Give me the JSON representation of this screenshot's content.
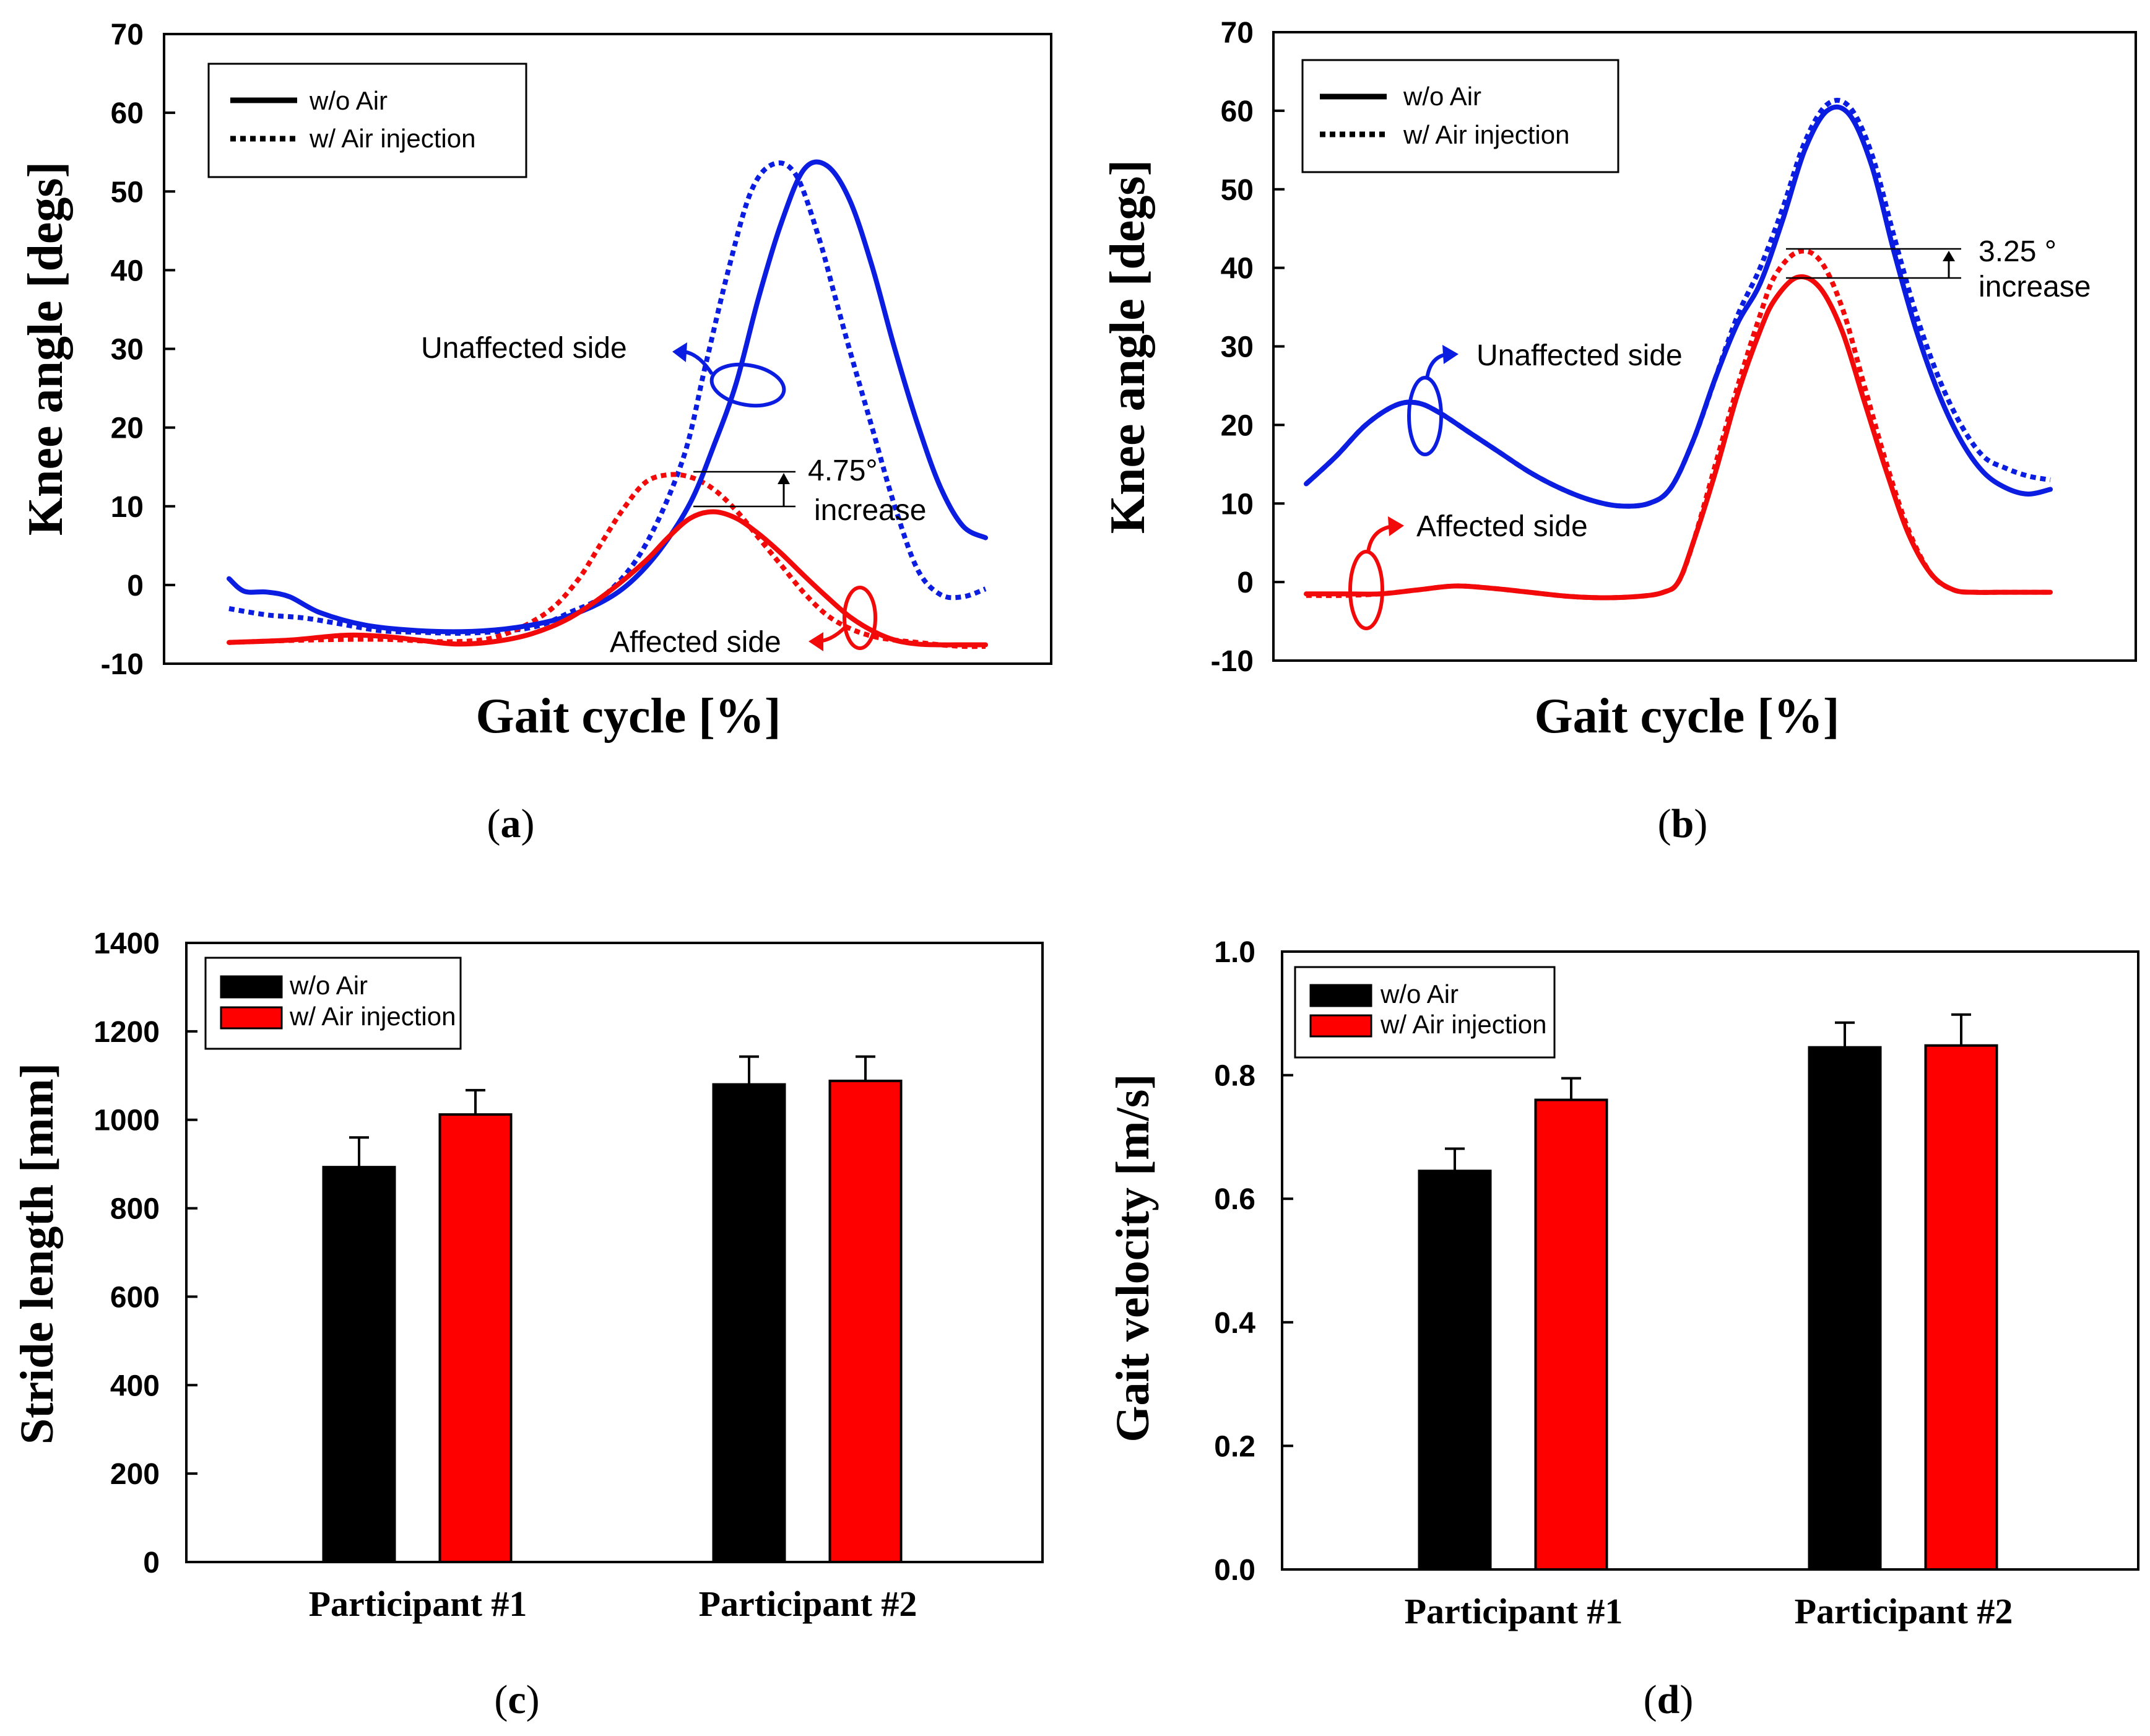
{
  "legend_line": {
    "solid": "w/o Air",
    "dotted": "w/ Air injection"
  },
  "legend_bar": {
    "black": "w/o Air",
    "red": "w/ Air injection"
  },
  "colors": {
    "blue": "#0b1de0",
    "red": "#f20a0a",
    "black": "#000000",
    "bar_red": "#ff0000"
  },
  "chart_data": [
    {
      "id": "a",
      "caption": "a",
      "type": "line",
      "xlabel": "Gait cycle [%]",
      "ylabel": "Knee angle [degs]",
      "ylim": [
        -10,
        70
      ],
      "yticks": [
        "70",
        "60",
        "50",
        "40",
        "30",
        "20",
        "10",
        "0",
        "-10"
      ],
      "xlim": [
        0,
        100
      ],
      "series": [
        {
          "name": "Unaffected side w/o Air",
          "side": "unaffected",
          "condition": "w/o Air",
          "style": "solid",
          "color": "blue",
          "x": [
            0,
            2,
            5,
            8,
            12,
            18,
            25,
            32,
            38,
            44,
            49,
            53,
            57,
            61,
            64,
            67,
            70,
            73,
            76,
            79,
            82,
            85,
            88,
            91,
            94,
            97,
            100
          ],
          "y": [
            0.8,
            -0.8,
            -0.9,
            -1.5,
            -3.5,
            -5.1,
            -5.8,
            -5.9,
            -5.4,
            -4.2,
            -2.3,
            0.3,
            4.5,
            10.5,
            17.5,
            25.5,
            36.5,
            46,
            52.8,
            53.3,
            49,
            40.5,
            30,
            20.5,
            12.5,
            7.5,
            6
          ]
        },
        {
          "name": "Unaffected side w/ Air injection",
          "side": "unaffected",
          "condition": "w/ Air injection",
          "style": "dotted",
          "color": "blue",
          "x": [
            0,
            5,
            10,
            15,
            20,
            25,
            32,
            40,
            45,
            50,
            55,
            60,
            63,
            66,
            69,
            72,
            75,
            78,
            80,
            82,
            85,
            88,
            91,
            94,
            97,
            100
          ],
          "y": [
            -3,
            -3.8,
            -4.2,
            -5,
            -5.8,
            -6,
            -6.1,
            -5.4,
            -3.5,
            -1,
            5,
            16,
            28,
            40,
            50,
            53.5,
            52,
            44,
            37,
            30,
            20,
            10,
            2,
            -1.2,
            -1.5,
            -0.5
          ]
        },
        {
          "name": "Affected side w/o Air",
          "side": "affected",
          "condition": "w/o Air",
          "style": "solid",
          "color": "red",
          "x": [
            0,
            8,
            15,
            20,
            25,
            30,
            35,
            40,
            45,
            50,
            55,
            58,
            61,
            64,
            67,
            70,
            73,
            76,
            79,
            82,
            85,
            88,
            91,
            94,
            97,
            100
          ],
          "y": [
            -7.3,
            -7,
            -6.4,
            -6.5,
            -7,
            -7.5,
            -7.2,
            -6.2,
            -4.2,
            -1,
            3,
            6,
            8.5,
            9.3,
            8.5,
            6.5,
            4,
            1.2,
            -1.5,
            -4,
            -5.8,
            -7,
            -7.5,
            -7.6,
            -7.6,
            -7.6
          ]
        },
        {
          "name": "Affected side w/ Air injection",
          "side": "affected",
          "condition": "w/ Air injection",
          "style": "dotted",
          "color": "red",
          "x": [
            0,
            10,
            20,
            30,
            36,
            42,
            46,
            49,
            52,
            55,
            58,
            61,
            64,
            67,
            70,
            73,
            76,
            79,
            82,
            85,
            88,
            91,
            94,
            97,
            100
          ],
          "y": [
            -7.3,
            -7,
            -6.9,
            -7.2,
            -6.4,
            -3.5,
            0.5,
            5,
            9.5,
            13,
            14,
            13.7,
            12.2,
            9.5,
            6,
            2.5,
            -1,
            -3.8,
            -5.5,
            -6.5,
            -7,
            -7.3,
            -7.6,
            -7.8,
            -7.8
          ]
        }
      ],
      "annotations": {
        "unaffected_label": "Unaffected side",
        "affected_label": "Affected side",
        "increase_value": "4.75°",
        "increase_word": "increase"
      }
    },
    {
      "id": "b",
      "caption": "b",
      "type": "line",
      "xlabel": "Gait cycle [%]",
      "ylabel": "Knee angle [degs]",
      "ylim": [
        -10,
        70
      ],
      "yticks": [
        "70",
        "60",
        "50",
        "40",
        "30",
        "20",
        "10",
        "0",
        "-10"
      ],
      "xlim": [
        0,
        100
      ],
      "series": [
        {
          "name": "Unaffected side w/o Air",
          "side": "unaffected",
          "condition": "w/o Air",
          "style": "solid",
          "color": "blue",
          "x": [
            0,
            4,
            8,
            12,
            15,
            18,
            22,
            26,
            30,
            34,
            38,
            42,
            46,
            49,
            52,
            55,
            58,
            61,
            64,
            67,
            70,
            73,
            76,
            79,
            82,
            85,
            88,
            91,
            94,
            97,
            100
          ],
          "y": [
            12.5,
            16,
            20,
            22.5,
            22.8,
            21.5,
            19,
            16.5,
            14,
            12,
            10.5,
            9.7,
            10,
            12,
            18,
            26,
            33,
            38,
            46,
            55,
            60,
            59.5,
            53,
            42,
            32,
            24,
            18,
            14,
            12,
            11.2,
            11.8
          ]
        },
        {
          "name": "Unaffected side w/ Air injection",
          "side": "unaffected",
          "condition": "w/ Air injection",
          "style": "dotted",
          "color": "blue",
          "x": [
            0,
            4,
            8,
            12,
            15,
            18,
            22,
            26,
            30,
            34,
            38,
            42,
            46,
            49,
            52,
            55,
            58,
            61,
            64,
            67,
            70,
            73,
            76,
            79,
            82,
            85,
            88,
            91,
            94,
            97,
            100
          ],
          "y": [
            12.5,
            16,
            20,
            22.5,
            22.8,
            21.5,
            19,
            16.5,
            14,
            12,
            10.5,
            9.7,
            10,
            12,
            18,
            26,
            34,
            40,
            47.5,
            56,
            60.8,
            60.5,
            54.5,
            44,
            34,
            26,
            20,
            16,
            14.5,
            13.5,
            13
          ]
        },
        {
          "name": "Affected side w/o Air",
          "side": "affected",
          "condition": "w/o Air",
          "style": "solid",
          "color": "red",
          "x": [
            0,
            5,
            10,
            15,
            20,
            25,
            30,
            35,
            40,
            45,
            48,
            50,
            52,
            55,
            58,
            61,
            63,
            66,
            69,
            72,
            75,
            78,
            81,
            84,
            87,
            90,
            93,
            96,
            100
          ],
          "y": [
            -1.5,
            -1.5,
            -1.5,
            -1,
            -0.5,
            -0.8,
            -1.3,
            -1.8,
            -2,
            -1.8,
            -1.3,
            0,
            5,
            14,
            24,
            32,
            36,
            38.8,
            37.5,
            32,
            23,
            14,
            6,
            1,
            -1,
            -1.3,
            -1.3,
            -1.3,
            -1.3
          ]
        },
        {
          "name": "Affected side w/ Air injection",
          "side": "affected",
          "condition": "w/ Air injection",
          "style": "dotted",
          "color": "red",
          "x": [
            0,
            5,
            10,
            15,
            20,
            25,
            30,
            35,
            40,
            45,
            48,
            50,
            52,
            55,
            58,
            61,
            63,
            66,
            69,
            72,
            75,
            78,
            81,
            84,
            87,
            90,
            93,
            96,
            100
          ],
          "y": [
            -1.7,
            -1.7,
            -1.5,
            -1,
            -0.5,
            -0.8,
            -1.3,
            -1.8,
            -2,
            -1.8,
            -1.3,
            0,
            5,
            15,
            25,
            34,
            39,
            42,
            41,
            35,
            25,
            15,
            6.5,
            1,
            -1,
            -1.3,
            -1.3,
            -1.3,
            -1.3
          ]
        }
      ],
      "annotations": {
        "unaffected_label": "Unaffected side",
        "affected_label": "Affected side",
        "increase_value": "3.25 °",
        "increase_word": "increase"
      }
    },
    {
      "id": "c",
      "caption": "c",
      "type": "bar",
      "ylabel": "Stride length [mm]",
      "ylim": [
        0,
        1400
      ],
      "yticks": [
        "1400",
        "1200",
        "1000",
        "800",
        "600",
        "400",
        "200",
        "0"
      ],
      "categories": [
        "Participant #1",
        "Participant #2"
      ],
      "series": [
        {
          "name": "w/o Air",
          "color": "black",
          "values": [
            893,
            1080
          ],
          "errors": [
            67,
            63
          ]
        },
        {
          "name": "w/ Air injection",
          "color": "bar_red",
          "values": [
            1012,
            1088
          ],
          "errors": [
            55,
            55
          ]
        }
      ]
    },
    {
      "id": "d",
      "caption": "d",
      "type": "bar",
      "ylabel": "Gait velocity [m/s]",
      "ylim": [
        0,
        1.0
      ],
      "yticks": [
        "1.0",
        "0.8",
        "0.6",
        "0.4",
        "0.2",
        "0.0"
      ],
      "categories": [
        "Participant #1",
        "Participant #2"
      ],
      "series": [
        {
          "name": "w/o Air",
          "color": "black",
          "values": [
            0.645,
            0.845
          ],
          "errors": [
            0.036,
            0.04
          ]
        },
        {
          "name": "w/ Air injection",
          "color": "bar_red",
          "values": [
            0.76,
            0.848
          ],
          "errors": [
            0.035,
            0.05
          ]
        }
      ]
    }
  ]
}
